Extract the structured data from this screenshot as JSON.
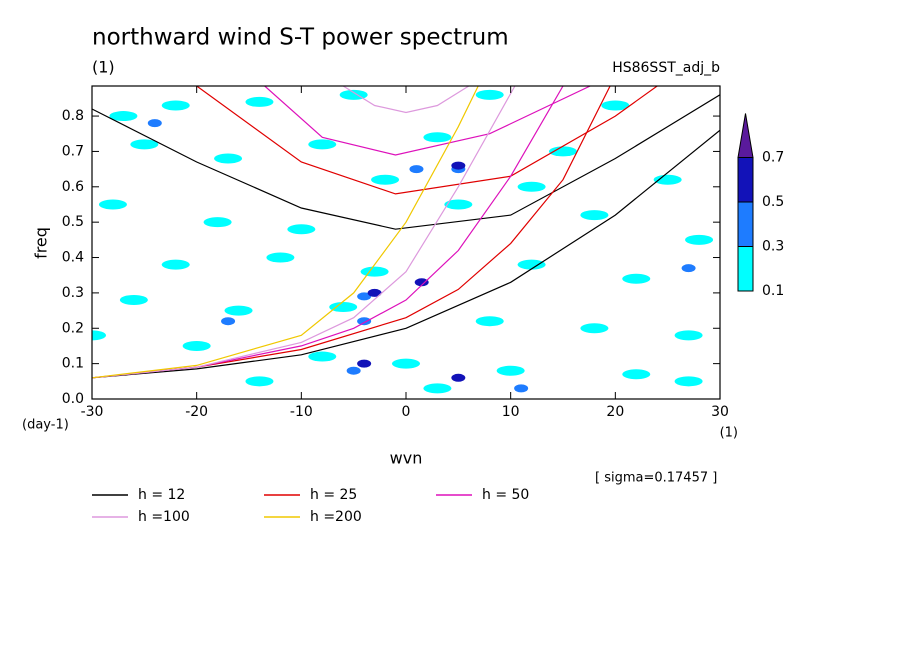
{
  "chart_data": {
    "type": "spectrum",
    "title": "northward wind S-T power spectrum",
    "subtitle_left": "(1)",
    "subtitle_right": "HS86SST_adj_b",
    "x_label": "wvn",
    "y_label": "freq",
    "y_unit": "(day-1)",
    "x_unit": "(1)",
    "annotation": "[ sigma=0.17457 ]",
    "xlim": [
      -30,
      30
    ],
    "xticks": [
      -30,
      -20,
      -10,
      0,
      10,
      20,
      30
    ],
    "ylim": [
      0,
      0.885
    ],
    "yticks": [
      {
        "value": 0,
        "label": "0.0"
      },
      0.1,
      0.2,
      0.3,
      0.4,
      0.5,
      0.6,
      0.7,
      0.8
    ],
    "colorbar": {
      "levels": [
        0.1,
        0.3,
        0.5,
        0.7
      ],
      "colors": [
        "#00ffff",
        "#1e7cff",
        "#1212b8",
        "#5a1a9c"
      ]
    },
    "field": [
      [
        -27,
        0.8,
        0.1
      ],
      [
        -22,
        0.83,
        0.1
      ],
      [
        -14,
        0.84,
        0.1
      ],
      [
        -5,
        0.86,
        0.1
      ],
      [
        8,
        0.86,
        0.1
      ],
      [
        20,
        0.83,
        0.1
      ],
      [
        -25,
        0.72,
        0.1
      ],
      [
        -17,
        0.68,
        0.1
      ],
      [
        -8,
        0.72,
        0.1
      ],
      [
        3,
        0.74,
        0.1
      ],
      [
        15,
        0.7,
        0.1
      ],
      [
        25,
        0.62,
        0.1
      ],
      [
        -28,
        0.55,
        0.1
      ],
      [
        -18,
        0.5,
        0.1
      ],
      [
        -10,
        0.48,
        0.1
      ],
      [
        5,
        0.55,
        0.1
      ],
      [
        18,
        0.52,
        0.1
      ],
      [
        28,
        0.45,
        0.1
      ],
      [
        -22,
        0.38,
        0.1
      ],
      [
        -12,
        0.4,
        0.1
      ],
      [
        -3,
        0.36,
        0.1
      ],
      [
        12,
        0.38,
        0.1
      ],
      [
        22,
        0.34,
        0.1
      ],
      [
        -26,
        0.28,
        0.1
      ],
      [
        -16,
        0.25,
        0.1
      ],
      [
        -6,
        0.26,
        0.1
      ],
      [
        8,
        0.22,
        0.1
      ],
      [
        18,
        0.2,
        0.1
      ],
      [
        27,
        0.18,
        0.1
      ],
      [
        -20,
        0.15,
        0.1
      ],
      [
        -8,
        0.12,
        0.1
      ],
      [
        0,
        0.1,
        0.1
      ],
      [
        10,
        0.08,
        0.1
      ],
      [
        22,
        0.07,
        0.1
      ],
      [
        -14,
        0.05,
        0.1
      ],
      [
        3,
        0.03,
        0.1
      ],
      [
        27,
        0.05,
        0.1
      ],
      [
        -2,
        0.62,
        0.1
      ],
      [
        12,
        0.6,
        0.1
      ],
      [
        -30,
        0.18,
        0.1
      ],
      [
        -24,
        0.78,
        0.3
      ],
      [
        -4,
        0.29,
        0.3
      ],
      [
        -4,
        0.22,
        0.3
      ],
      [
        1,
        0.65,
        0.3
      ],
      [
        5,
        0.65,
        0.3
      ],
      [
        -5,
        0.08,
        0.3
      ],
      [
        11,
        0.03,
        0.3
      ],
      [
        27,
        0.37,
        0.3
      ],
      [
        -17,
        0.22,
        0.3
      ],
      [
        -4,
        0.1,
        0.5
      ],
      [
        5,
        0.06,
        0.5
      ],
      [
        -3,
        0.3,
        0.5
      ],
      [
        1.5,
        0.33,
        0.5
      ],
      [
        5,
        0.66,
        0.5
      ]
    ],
    "series": [
      {
        "name": "h = 12",
        "color": "#000000",
        "branches": [
          {
            "x": [
              -30,
              -20,
              -10,
              -1,
              10,
              20,
              30
            ],
            "values": [
              0.82,
              0.67,
              0.54,
              0.48,
              0.52,
              0.68,
              0.86
            ]
          },
          {
            "x": [
              -30,
              -20,
              -10,
              0,
              10,
              20,
              30
            ],
            "values": [
              0.06,
              0.085,
              0.125,
              0.2,
              0.33,
              0.52,
              0.76
            ]
          }
        ]
      },
      {
        "name": "h = 25",
        "color": "#e00000",
        "branches": [
          {
            "x": [
              -20,
              -10,
              -1,
              10,
              20,
              24
            ],
            "values": [
              0.885,
              0.67,
              0.58,
              0.63,
              0.8,
              0.885
            ]
          },
          {
            "x": [
              -30,
              -20,
              -10,
              0,
              5,
              10,
              15,
              19.5
            ],
            "values": [
              0.06,
              0.09,
              0.14,
              0.23,
              0.31,
              0.44,
              0.62,
              0.885
            ]
          }
        ]
      },
      {
        "name": "h = 50",
        "color": "#dd11bb",
        "branches": [
          {
            "x": [
              -13.5,
              -8,
              -1,
              8,
              17.6
            ],
            "values": [
              0.885,
              0.74,
              0.69,
              0.75,
              0.885
            ]
          },
          {
            "x": [
              -30,
              -20,
              -10,
              -5,
              0,
              5,
              10,
              15
            ],
            "values": [
              0.06,
              0.09,
              0.15,
              0.2,
              0.28,
              0.42,
              0.63,
              0.885
            ]
          }
        ]
      },
      {
        "name": "h =100",
        "color": "#dd99dd",
        "branches": [
          {
            "x": [
              -6,
              -3,
              0,
              3,
              6
            ],
            "values": [
              0.885,
              0.83,
              0.81,
              0.83,
              0.885
            ]
          },
          {
            "x": [
              -30,
              -20,
              -10,
              -5,
              0,
              5,
              10.4
            ],
            "values": [
              0.06,
              0.09,
              0.16,
              0.23,
              0.36,
              0.6,
              0.885
            ]
          }
        ]
      },
      {
        "name": "h =200",
        "color": "#f0c800",
        "branches": [
          {
            "x": [
              -30,
              -20,
              -10,
              -5,
              0,
              5,
              6.9
            ],
            "values": [
              0.06,
              0.095,
              0.18,
              0.3,
              0.5,
              0.77,
              0.885
            ]
          }
        ]
      }
    ]
  }
}
